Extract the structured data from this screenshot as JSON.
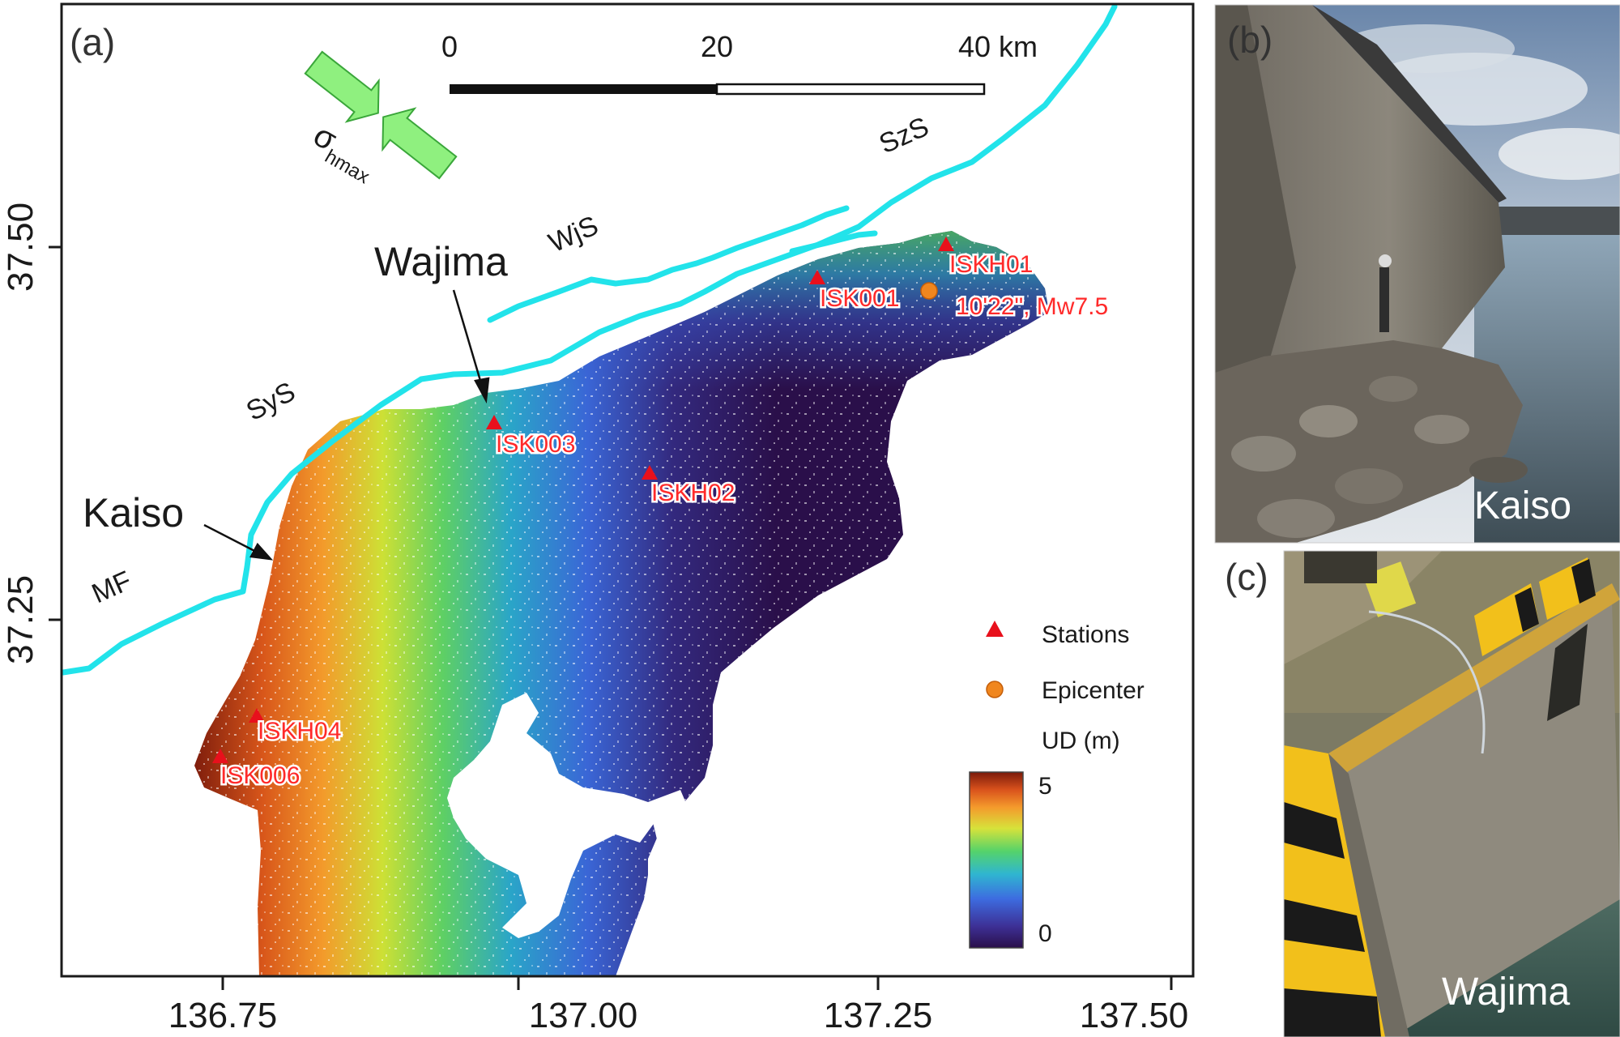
{
  "panel_a": {
    "label": "(a)",
    "lon_ticks": [
      "136.75",
      "137.00",
      "137.25",
      "137.50"
    ],
    "lat_ticks": [
      "37.50",
      "37.25"
    ],
    "scale_bar": {
      "labels": [
        "0",
        "20",
        "40 km"
      ]
    },
    "stress_label": "σ",
    "stress_subscript": "hmax",
    "places": {
      "wajima": "Wajima",
      "kaiso": "Kaiso"
    },
    "faults": {
      "mf": "MF",
      "sys": "SyS",
      "wjs": "WjS",
      "szs": "SzS"
    },
    "stations": [
      "ISKH01",
      "ISK001",
      "ISK003",
      "ISKH02",
      "ISKH04",
      "ISK006"
    ],
    "epicenter_label": "10'22\", Mw7.5",
    "legend": {
      "stations": "Stations",
      "epicenter": "Epicenter",
      "colorbar_title": "UD (m)",
      "colorbar_max": "5",
      "colorbar_min": "0"
    },
    "colors": {
      "fault_line": "#22e3ea",
      "station": "#e8101c",
      "epicenter": "#f0861e",
      "low_uplift": "#2a0f4a"
    }
  },
  "panel_b": {
    "label": "(b)",
    "caption": "Kaiso"
  },
  "panel_c": {
    "label": "(c)",
    "caption": "Wajima"
  }
}
